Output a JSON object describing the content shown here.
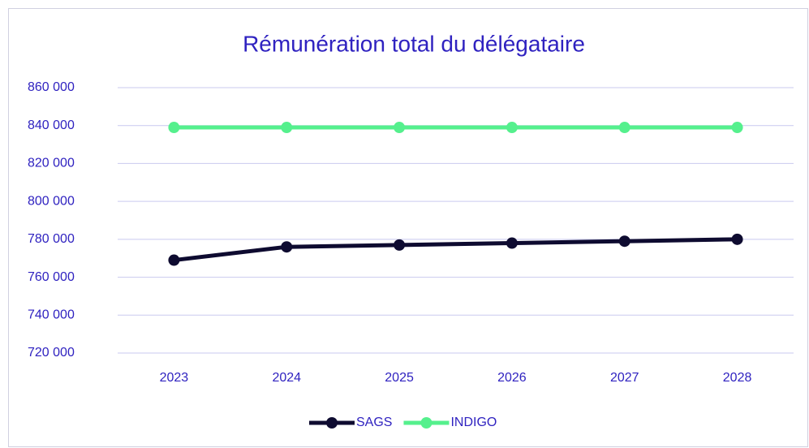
{
  "chart_data": {
    "type": "line",
    "title": "Rémunération total du délégataire",
    "categories": [
      "2023",
      "2024",
      "2025",
      "2026",
      "2027",
      "2028"
    ],
    "series": [
      {
        "name": "SAGS",
        "color": "#0e0b30",
        "values": [
          769000,
          776000,
          777000,
          778000,
          779000,
          780000
        ]
      },
      {
        "name": "INDIGO",
        "color": "#55f08d",
        "values": [
          839000,
          839000,
          839000,
          839000,
          839000,
          839000
        ]
      }
    ],
    "ylim": [
      720000,
      860000
    ],
    "yticks": [
      {
        "value": 720000,
        "label": "720 000"
      },
      {
        "value": 740000,
        "label": "740 000"
      },
      {
        "value": 760000,
        "label": "760 000"
      },
      {
        "value": 780000,
        "label": "780 000"
      },
      {
        "value": 800000,
        "label": "800 000"
      },
      {
        "value": 820000,
        "label": "820 000"
      },
      {
        "value": 840000,
        "label": "840 000"
      },
      {
        "value": 860000,
        "label": "860 000"
      }
    ],
    "grid": true,
    "legend": "bottom"
  }
}
